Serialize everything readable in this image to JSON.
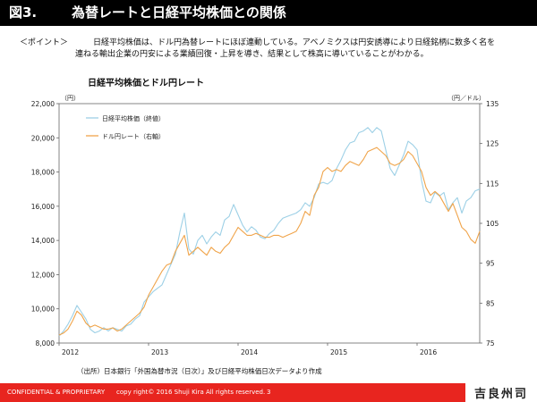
{
  "header": {
    "figure_no": "図3.",
    "title": "為替レートと日経平均株価との関係"
  },
  "point": {
    "label": "＜ポイント＞",
    "line1": "日経平均株価は、ドル円為替レートにほぼ連動している。アベノミクスは円安誘導により日経銘柄に数多く名を",
    "line2": "連ねる輸出企業の円安による業績回復・上昇を導き、結果として株高に導いていることがわかる。"
  },
  "chart_title": "日経平均株価とドル円レート",
  "chart_data": {
    "type": "line",
    "title": "日経平均株価とドル円レート",
    "left_axis": {
      "unit": "（円）",
      "range": [
        8000,
        22000
      ],
      "ticks": [
        8000,
        10000,
        12000,
        14000,
        16000,
        18000,
        20000,
        22000
      ],
      "tick_labels": [
        "8,000",
        "10,000",
        "12,000",
        "14,000",
        "16,000",
        "18,000",
        "20,000",
        "22,000"
      ]
    },
    "right_axis": {
      "unit": "（円／ドル）",
      "range": [
        75,
        135
      ],
      "ticks": [
        75,
        85,
        95,
        105,
        115,
        125,
        135
      ],
      "tick_labels": [
        "75",
        "85",
        "95",
        "105",
        "115",
        "125",
        "135"
      ]
    },
    "x_axis": {
      "range": [
        2012.0,
        2016.7
      ],
      "ticks": [
        2012.0,
        2013.0,
        2014.0,
        2015.0,
        2016.0
      ],
      "tick_labels": [
        "2012",
        "2013",
        "2014",
        "2015",
        "2016"
      ]
    },
    "legend": [
      "日経平均株価（終値）",
      "ドル円レート（右軸）"
    ],
    "series": [
      {
        "name": "日経平均株価（終値）",
        "axis": "left",
        "color": "#9dd0e6",
        "x": [
          2012.0,
          2012.05,
          2012.1,
          2012.15,
          2012.2,
          2012.25,
          2012.3,
          2012.35,
          2012.4,
          2012.45,
          2012.5,
          2012.55,
          2012.6,
          2012.65,
          2012.7,
          2012.75,
          2012.8,
          2012.85,
          2012.9,
          2012.95,
          2013.0,
          2013.05,
          2013.1,
          2013.15,
          2013.2,
          2013.25,
          2013.3,
          2013.35,
          2013.4,
          2013.45,
          2013.5,
          2013.55,
          2013.6,
          2013.65,
          2013.7,
          2013.75,
          2013.8,
          2013.85,
          2013.9,
          2013.95,
          2014.0,
          2014.05,
          2014.1,
          2014.15,
          2014.2,
          2014.25,
          2014.3,
          2014.35,
          2014.4,
          2014.45,
          2014.5,
          2014.55,
          2014.6,
          2014.65,
          2014.7,
          2014.75,
          2014.8,
          2014.85,
          2014.9,
          2014.95,
          2015.0,
          2015.05,
          2015.1,
          2015.15,
          2015.2,
          2015.25,
          2015.3,
          2015.35,
          2015.4,
          2015.45,
          2015.5,
          2015.55,
          2015.6,
          2015.65,
          2015.7,
          2015.75,
          2015.8,
          2015.85,
          2015.9,
          2015.95,
          2016.0,
          2016.05,
          2016.1,
          2016.15,
          2016.2,
          2016.25,
          2016.3,
          2016.35,
          2016.4,
          2016.45,
          2016.5,
          2016.55,
          2016.6,
          2016.65,
          2016.7
        ],
        "values": [
          8400,
          8700,
          9100,
          9600,
          10200,
          9800,
          9400,
          8800,
          8600,
          8700,
          8900,
          8700,
          8900,
          8800,
          8700,
          9000,
          9100,
          9400,
          9600,
          10400,
          10700,
          11000,
          11200,
          11400,
          12000,
          12600,
          13200,
          14500,
          15600,
          13500,
          13200,
          14000,
          14300,
          13800,
          14200,
          14500,
          14300,
          15200,
          15400,
          16100,
          15500,
          14900,
          14500,
          14800,
          14600,
          14200,
          14100,
          14400,
          14600,
          15000,
          15300,
          15400,
          15500,
          15600,
          15800,
          16200,
          16000,
          16500,
          17300,
          17400,
          17300,
          17500,
          18200,
          18700,
          19300,
          19700,
          19800,
          20300,
          20400,
          20600,
          20300,
          20600,
          20400,
          19300,
          18200,
          17800,
          18400,
          19000,
          19800,
          19600,
          19300,
          17500,
          16300,
          16200,
          16800,
          16600,
          16800,
          15800,
          16200,
          16500,
          15600,
          16300,
          16500,
          16900,
          17000
        ]
      },
      {
        "name": "ドル円レート（右軸）",
        "axis": "right",
        "color": "#f0a44a",
        "x": [
          2012.0,
          2012.05,
          2012.1,
          2012.15,
          2012.2,
          2012.25,
          2012.3,
          2012.35,
          2012.4,
          2012.45,
          2012.5,
          2012.55,
          2012.6,
          2012.65,
          2012.7,
          2012.75,
          2012.8,
          2012.85,
          2012.9,
          2012.95,
          2013.0,
          2013.05,
          2013.1,
          2013.15,
          2013.2,
          2013.25,
          2013.3,
          2013.35,
          2013.4,
          2013.45,
          2013.5,
          2013.55,
          2013.6,
          2013.65,
          2013.7,
          2013.75,
          2013.8,
          2013.85,
          2013.9,
          2013.95,
          2014.0,
          2014.05,
          2014.1,
          2014.15,
          2014.2,
          2014.25,
          2014.3,
          2014.35,
          2014.4,
          2014.45,
          2014.5,
          2014.55,
          2014.6,
          2014.65,
          2014.7,
          2014.75,
          2014.8,
          2014.85,
          2014.9,
          2014.95,
          2015.0,
          2015.05,
          2015.1,
          2015.15,
          2015.2,
          2015.25,
          2015.3,
          2015.35,
          2015.4,
          2015.45,
          2015.5,
          2015.55,
          2015.6,
          2015.65,
          2015.7,
          2015.75,
          2015.8,
          2015.85,
          2015.9,
          2015.95,
          2016.0,
          2016.05,
          2016.1,
          2016.15,
          2016.2,
          2016.25,
          2016.3,
          2016.35,
          2016.4,
          2016.45,
          2016.5,
          2016.55,
          2016.6,
          2016.65,
          2016.7
        ],
        "values": [
          77,
          77.5,
          78.5,
          80.5,
          83,
          82,
          80,
          79,
          79.5,
          79,
          78.5,
          78.5,
          78.8,
          78,
          78.5,
          79.5,
          80.5,
          81.5,
          82.5,
          84,
          87,
          89,
          91,
          93,
          94.5,
          95,
          98,
          100,
          102,
          97,
          98,
          99,
          98,
          97,
          99,
          98,
          97.5,
          99,
          100,
          102,
          104,
          103,
          102,
          102,
          102.5,
          102,
          101.5,
          101.5,
          102,
          102,
          101.5,
          102,
          102.5,
          103,
          105,
          108,
          107,
          112,
          114,
          118,
          119,
          118,
          118.5,
          118,
          119.5,
          120.5,
          120,
          119.5,
          121,
          123,
          123.5,
          124,
          123,
          122,
          120,
          119.5,
          120,
          121,
          123,
          122,
          120,
          118,
          114,
          112,
          113,
          112,
          110,
          108,
          110,
          107,
          104,
          103,
          101,
          100,
          103
        ]
      }
    ]
  },
  "source": "（出所）日本銀行「外国為替市況（日次）」及び日経平均株価日次データより作成",
  "footer": {
    "confidential": "CONFIDENTIAL & PROPRIETARY",
    "copyright": "copy right© 2016 Shuji Kira All rights reserved.",
    "page": "3"
  },
  "logo": "吉良州司"
}
